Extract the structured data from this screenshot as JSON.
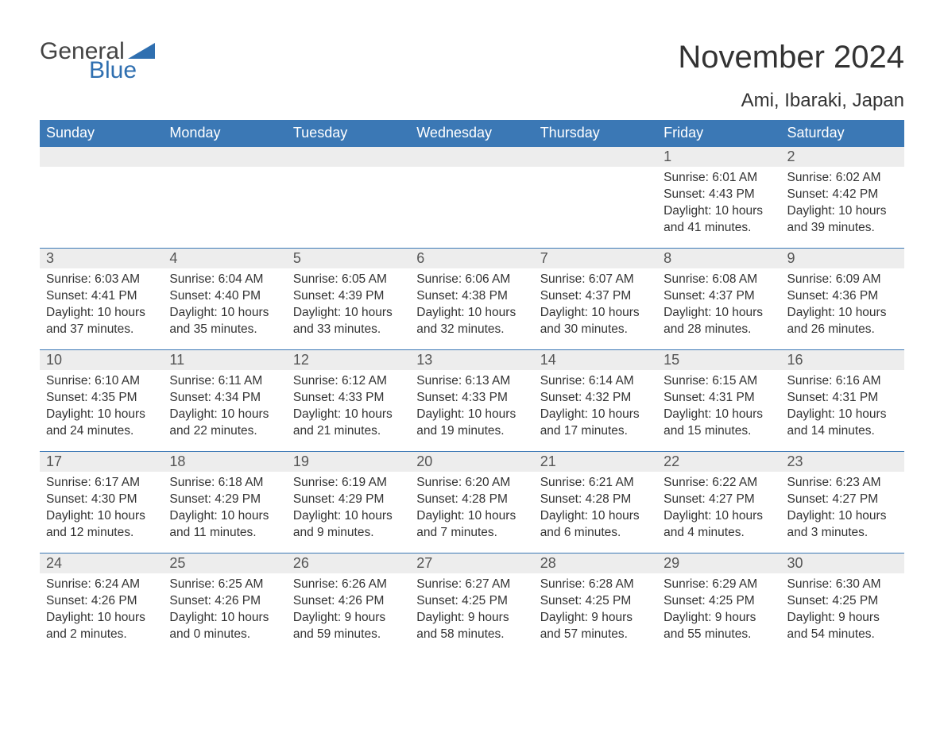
{
  "branding": {
    "logo_text_1": "General",
    "logo_text_2": "Blue",
    "logo_color_primary": "#2f6fb0",
    "logo_color_text": "#444444"
  },
  "header": {
    "title": "November 2024",
    "location": "Ami, Ibaraki, Japan",
    "title_fontsize": 40,
    "location_fontsize": 24,
    "title_color": "#333333"
  },
  "calendar": {
    "type": "table",
    "columns": [
      "Sunday",
      "Monday",
      "Tuesday",
      "Wednesday",
      "Thursday",
      "Friday",
      "Saturday"
    ],
    "header_bg": "#3b78b5",
    "header_fg": "#ffffff",
    "daynum_bg": "#ededed",
    "daynum_border_top": "#3b78b5",
    "body_fg": "#333333",
    "font_family": "Arial",
    "header_fontsize": 18,
    "daynum_fontsize": 18,
    "body_fontsize": 15.5,
    "weeks": [
      [
        null,
        null,
        null,
        null,
        null,
        {
          "day": "1",
          "sunrise": "Sunrise: 6:01 AM",
          "sunset": "Sunset: 4:43 PM",
          "daylight1": "Daylight: 10 hours",
          "daylight2": "and 41 minutes."
        },
        {
          "day": "2",
          "sunrise": "Sunrise: 6:02 AM",
          "sunset": "Sunset: 4:42 PM",
          "daylight1": "Daylight: 10 hours",
          "daylight2": "and 39 minutes."
        }
      ],
      [
        {
          "day": "3",
          "sunrise": "Sunrise: 6:03 AM",
          "sunset": "Sunset: 4:41 PM",
          "daylight1": "Daylight: 10 hours",
          "daylight2": "and 37 minutes."
        },
        {
          "day": "4",
          "sunrise": "Sunrise: 6:04 AM",
          "sunset": "Sunset: 4:40 PM",
          "daylight1": "Daylight: 10 hours",
          "daylight2": "and 35 minutes."
        },
        {
          "day": "5",
          "sunrise": "Sunrise: 6:05 AM",
          "sunset": "Sunset: 4:39 PM",
          "daylight1": "Daylight: 10 hours",
          "daylight2": "and 33 minutes."
        },
        {
          "day": "6",
          "sunrise": "Sunrise: 6:06 AM",
          "sunset": "Sunset: 4:38 PM",
          "daylight1": "Daylight: 10 hours",
          "daylight2": "and 32 minutes."
        },
        {
          "day": "7",
          "sunrise": "Sunrise: 6:07 AM",
          "sunset": "Sunset: 4:37 PM",
          "daylight1": "Daylight: 10 hours",
          "daylight2": "and 30 minutes."
        },
        {
          "day": "8",
          "sunrise": "Sunrise: 6:08 AM",
          "sunset": "Sunset: 4:37 PM",
          "daylight1": "Daylight: 10 hours",
          "daylight2": "and 28 minutes."
        },
        {
          "day": "9",
          "sunrise": "Sunrise: 6:09 AM",
          "sunset": "Sunset: 4:36 PM",
          "daylight1": "Daylight: 10 hours",
          "daylight2": "and 26 minutes."
        }
      ],
      [
        {
          "day": "10",
          "sunrise": "Sunrise: 6:10 AM",
          "sunset": "Sunset: 4:35 PM",
          "daylight1": "Daylight: 10 hours",
          "daylight2": "and 24 minutes."
        },
        {
          "day": "11",
          "sunrise": "Sunrise: 6:11 AM",
          "sunset": "Sunset: 4:34 PM",
          "daylight1": "Daylight: 10 hours",
          "daylight2": "and 22 minutes."
        },
        {
          "day": "12",
          "sunrise": "Sunrise: 6:12 AM",
          "sunset": "Sunset: 4:33 PM",
          "daylight1": "Daylight: 10 hours",
          "daylight2": "and 21 minutes."
        },
        {
          "day": "13",
          "sunrise": "Sunrise: 6:13 AM",
          "sunset": "Sunset: 4:33 PM",
          "daylight1": "Daylight: 10 hours",
          "daylight2": "and 19 minutes."
        },
        {
          "day": "14",
          "sunrise": "Sunrise: 6:14 AM",
          "sunset": "Sunset: 4:32 PM",
          "daylight1": "Daylight: 10 hours",
          "daylight2": "and 17 minutes."
        },
        {
          "day": "15",
          "sunrise": "Sunrise: 6:15 AM",
          "sunset": "Sunset: 4:31 PM",
          "daylight1": "Daylight: 10 hours",
          "daylight2": "and 15 minutes."
        },
        {
          "day": "16",
          "sunrise": "Sunrise: 6:16 AM",
          "sunset": "Sunset: 4:31 PM",
          "daylight1": "Daylight: 10 hours",
          "daylight2": "and 14 minutes."
        }
      ],
      [
        {
          "day": "17",
          "sunrise": "Sunrise: 6:17 AM",
          "sunset": "Sunset: 4:30 PM",
          "daylight1": "Daylight: 10 hours",
          "daylight2": "and 12 minutes."
        },
        {
          "day": "18",
          "sunrise": "Sunrise: 6:18 AM",
          "sunset": "Sunset: 4:29 PM",
          "daylight1": "Daylight: 10 hours",
          "daylight2": "and 11 minutes."
        },
        {
          "day": "19",
          "sunrise": "Sunrise: 6:19 AM",
          "sunset": "Sunset: 4:29 PM",
          "daylight1": "Daylight: 10 hours",
          "daylight2": "and 9 minutes."
        },
        {
          "day": "20",
          "sunrise": "Sunrise: 6:20 AM",
          "sunset": "Sunset: 4:28 PM",
          "daylight1": "Daylight: 10 hours",
          "daylight2": "and 7 minutes."
        },
        {
          "day": "21",
          "sunrise": "Sunrise: 6:21 AM",
          "sunset": "Sunset: 4:28 PM",
          "daylight1": "Daylight: 10 hours",
          "daylight2": "and 6 minutes."
        },
        {
          "day": "22",
          "sunrise": "Sunrise: 6:22 AM",
          "sunset": "Sunset: 4:27 PM",
          "daylight1": "Daylight: 10 hours",
          "daylight2": "and 4 minutes."
        },
        {
          "day": "23",
          "sunrise": "Sunrise: 6:23 AM",
          "sunset": "Sunset: 4:27 PM",
          "daylight1": "Daylight: 10 hours",
          "daylight2": "and 3 minutes."
        }
      ],
      [
        {
          "day": "24",
          "sunrise": "Sunrise: 6:24 AM",
          "sunset": "Sunset: 4:26 PM",
          "daylight1": "Daylight: 10 hours",
          "daylight2": "and 2 minutes."
        },
        {
          "day": "25",
          "sunrise": "Sunrise: 6:25 AM",
          "sunset": "Sunset: 4:26 PM",
          "daylight1": "Daylight: 10 hours",
          "daylight2": "and 0 minutes."
        },
        {
          "day": "26",
          "sunrise": "Sunrise: 6:26 AM",
          "sunset": "Sunset: 4:26 PM",
          "daylight1": "Daylight: 9 hours",
          "daylight2": "and 59 minutes."
        },
        {
          "day": "27",
          "sunrise": "Sunrise: 6:27 AM",
          "sunset": "Sunset: 4:25 PM",
          "daylight1": "Daylight: 9 hours",
          "daylight2": "and 58 minutes."
        },
        {
          "day": "28",
          "sunrise": "Sunrise: 6:28 AM",
          "sunset": "Sunset: 4:25 PM",
          "daylight1": "Daylight: 9 hours",
          "daylight2": "and 57 minutes."
        },
        {
          "day": "29",
          "sunrise": "Sunrise: 6:29 AM",
          "sunset": "Sunset: 4:25 PM",
          "daylight1": "Daylight: 9 hours",
          "daylight2": "and 55 minutes."
        },
        {
          "day": "30",
          "sunrise": "Sunrise: 6:30 AM",
          "sunset": "Sunset: 4:25 PM",
          "daylight1": "Daylight: 9 hours",
          "daylight2": "and 54 minutes."
        }
      ]
    ]
  }
}
